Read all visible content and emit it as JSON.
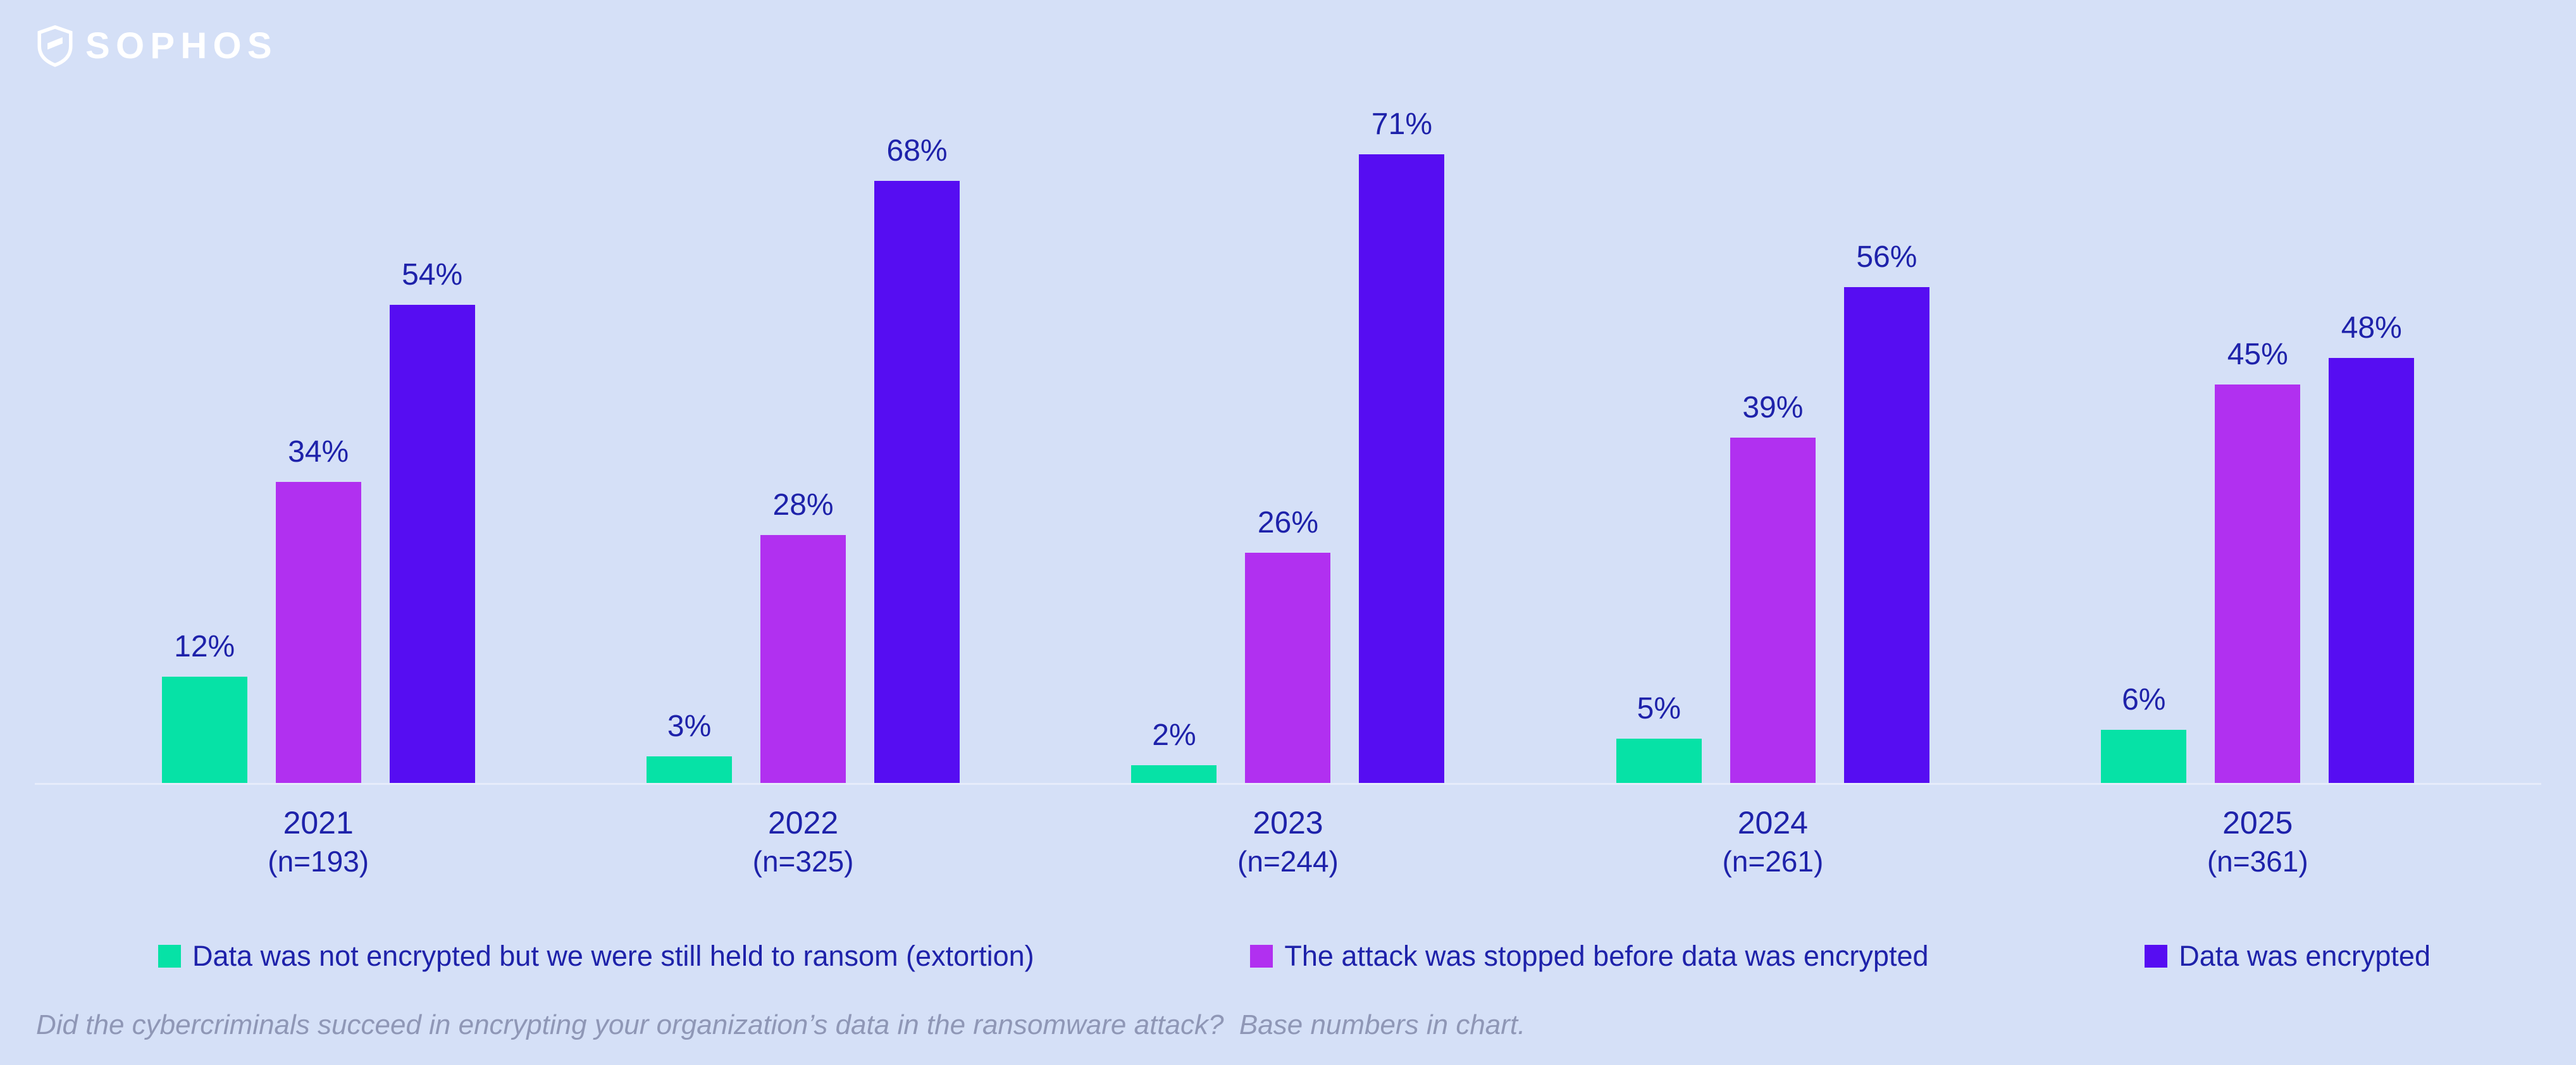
{
  "brand": {
    "logo_text": "SOPHOS"
  },
  "colors": {
    "background": "#d5e0f7",
    "text": "#1e22aa",
    "footnote": "#8f97b6",
    "axis_line": "#e6ecfb",
    "series": {
      "extortion": "#06e2a6",
      "stopped": "#b130f0",
      "encrypted": "#560df2"
    }
  },
  "chart_data": {
    "type": "bar",
    "title": "",
    "xlabel": "",
    "ylabel": "",
    "value_suffix": "%",
    "ylim": [
      0,
      75
    ],
    "grid": false,
    "legend_position": "bottom",
    "categories": [
      {
        "year": "2021",
        "n_label": "(n=193)"
      },
      {
        "year": "2022",
        "n_label": "(n=325)"
      },
      {
        "year": "2023",
        "n_label": "(n=244)"
      },
      {
        "year": "2024",
        "n_label": "(n=261)"
      },
      {
        "year": "2025",
        "n_label": "(n=361)"
      }
    ],
    "series": [
      {
        "key": "extortion",
        "name": "Data was not encrypted but we were still held to ransom (extortion)",
        "values": [
          12,
          3,
          2,
          5,
          6
        ]
      },
      {
        "key": "stopped",
        "name": "The attack was stopped before data was encrypted",
        "values": [
          34,
          28,
          26,
          39,
          45
        ]
      },
      {
        "key": "encrypted",
        "name": "Data was encrypted",
        "values": [
          54,
          68,
          71,
          56,
          48
        ]
      }
    ]
  },
  "footnote": "Did the cybercriminals succeed in encrypting your organization’s data in the ransomware attack?  Base numbers in chart."
}
